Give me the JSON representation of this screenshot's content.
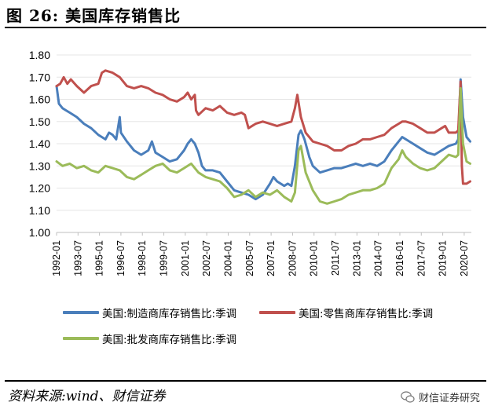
{
  "figure": {
    "title": "图 26:  美国库存销售比",
    "source": "资料来源:wind、财信证券",
    "watermark": "财信证券研究"
  },
  "chart_data": {
    "type": "line",
    "ylim": [
      1.0,
      1.8
    ],
    "yticks": [
      "1.00",
      "1.10",
      "1.20",
      "1.30",
      "1.40",
      "1.50",
      "1.60",
      "1.70",
      "1.80"
    ],
    "xlim": [
      "1992-01",
      "2020-12"
    ],
    "xticks": [
      "1992-01",
      "1993-07",
      "1995-01",
      "1996-07",
      "1998-01",
      "1999-07",
      "2001-01",
      "2002-07",
      "2004-01",
      "2005-07",
      "2007-01",
      "2008-07",
      "2010-01",
      "2011-07",
      "2013-01",
      "2014-07",
      "2016-01",
      "2017-07",
      "2019-01",
      "2020-07"
    ],
    "grid": true,
    "legend_position": "bottom",
    "series": [
      {
        "name": "美国:制造商库存销售比:季调",
        "color": "#4a7ebb",
        "points": [
          [
            "1992-01",
            1.66
          ],
          [
            "1992-03",
            1.58
          ],
          [
            "1992-06",
            1.56
          ],
          [
            "1992-09",
            1.55
          ],
          [
            "1992-12",
            1.54
          ],
          [
            "1993-06",
            1.52
          ],
          [
            "1993-12",
            1.49
          ],
          [
            "1994-06",
            1.47
          ],
          [
            "1994-12",
            1.44
          ],
          [
            "1995-06",
            1.42
          ],
          [
            "1995-09",
            1.45
          ],
          [
            "1995-12",
            1.44
          ],
          [
            "1996-03",
            1.42
          ],
          [
            "1996-06",
            1.52
          ],
          [
            "1996-07",
            1.45
          ],
          [
            "1996-12",
            1.41
          ],
          [
            "1997-06",
            1.37
          ],
          [
            "1997-12",
            1.35
          ],
          [
            "1998-06",
            1.37
          ],
          [
            "1998-09",
            1.41
          ],
          [
            "1998-12",
            1.36
          ],
          [
            "1999-06",
            1.34
          ],
          [
            "1999-12",
            1.32
          ],
          [
            "2000-06",
            1.33
          ],
          [
            "2000-12",
            1.37
          ],
          [
            "2001-03",
            1.4
          ],
          [
            "2001-06",
            1.42
          ],
          [
            "2001-09",
            1.4
          ],
          [
            "2001-12",
            1.36
          ],
          [
            "2002-03",
            1.3
          ],
          [
            "2002-06",
            1.28
          ],
          [
            "2002-12",
            1.28
          ],
          [
            "2003-06",
            1.27
          ],
          [
            "2003-12",
            1.23
          ],
          [
            "2004-06",
            1.19
          ],
          [
            "2004-12",
            1.18
          ],
          [
            "2005-06",
            1.17
          ],
          [
            "2005-12",
            1.15
          ],
          [
            "2006-06",
            1.17
          ],
          [
            "2006-12",
            1.22
          ],
          [
            "2007-03",
            1.25
          ],
          [
            "2007-06",
            1.23
          ],
          [
            "2007-12",
            1.21
          ],
          [
            "2008-03",
            1.22
          ],
          [
            "2008-06",
            1.21
          ],
          [
            "2008-09",
            1.3
          ],
          [
            "2008-12",
            1.44
          ],
          [
            "2009-02",
            1.46
          ],
          [
            "2009-05",
            1.42
          ],
          [
            "2009-09",
            1.34
          ],
          [
            "2009-12",
            1.3
          ],
          [
            "2010-06",
            1.27
          ],
          [
            "2010-12",
            1.28
          ],
          [
            "2011-06",
            1.29
          ],
          [
            "2011-12",
            1.29
          ],
          [
            "2012-06",
            1.3
          ],
          [
            "2012-12",
            1.31
          ],
          [
            "2013-06",
            1.3
          ],
          [
            "2013-12",
            1.31
          ],
          [
            "2014-06",
            1.3
          ],
          [
            "2014-12",
            1.32
          ],
          [
            "2015-06",
            1.37
          ],
          [
            "2015-12",
            1.41
          ],
          [
            "2016-03",
            1.43
          ],
          [
            "2016-06",
            1.42
          ],
          [
            "2016-12",
            1.4
          ],
          [
            "2017-06",
            1.38
          ],
          [
            "2017-12",
            1.36
          ],
          [
            "2018-06",
            1.35
          ],
          [
            "2018-12",
            1.37
          ],
          [
            "2019-06",
            1.39
          ],
          [
            "2019-12",
            1.4
          ],
          [
            "2020-02",
            1.42
          ],
          [
            "2020-04",
            1.69
          ],
          [
            "2020-06",
            1.52
          ],
          [
            "2020-09",
            1.43
          ],
          [
            "2020-12",
            1.41
          ]
        ]
      },
      {
        "name": "美国:零售商库存销售比:季调",
        "color": "#c0504d",
        "points": [
          [
            "1992-01",
            1.66
          ],
          [
            "1992-04",
            1.67
          ],
          [
            "1992-07",
            1.7
          ],
          [
            "1992-10",
            1.67
          ],
          [
            "1993-01",
            1.69
          ],
          [
            "1993-06",
            1.66
          ],
          [
            "1993-12",
            1.63
          ],
          [
            "1994-06",
            1.66
          ],
          [
            "1994-12",
            1.67
          ],
          [
            "1995-03",
            1.72
          ],
          [
            "1995-06",
            1.73
          ],
          [
            "1995-12",
            1.72
          ],
          [
            "1996-06",
            1.7
          ],
          [
            "1996-12",
            1.66
          ],
          [
            "1997-06",
            1.65
          ],
          [
            "1997-12",
            1.66
          ],
          [
            "1998-06",
            1.65
          ],
          [
            "1998-12",
            1.63
          ],
          [
            "1999-06",
            1.62
          ],
          [
            "1999-12",
            1.6
          ],
          [
            "2000-06",
            1.59
          ],
          [
            "2000-12",
            1.61
          ],
          [
            "2001-03",
            1.63
          ],
          [
            "2001-06",
            1.6
          ],
          [
            "2001-09",
            1.62
          ],
          [
            "2001-10",
            1.55
          ],
          [
            "2001-12",
            1.53
          ],
          [
            "2002-06",
            1.56
          ],
          [
            "2002-12",
            1.55
          ],
          [
            "2003-06",
            1.57
          ],
          [
            "2003-12",
            1.54
          ],
          [
            "2004-06",
            1.53
          ],
          [
            "2004-12",
            1.54
          ],
          [
            "2005-03",
            1.53
          ],
          [
            "2005-06",
            1.47
          ],
          [
            "2005-12",
            1.49
          ],
          [
            "2006-06",
            1.5
          ],
          [
            "2006-12",
            1.49
          ],
          [
            "2007-06",
            1.48
          ],
          [
            "2007-12",
            1.49
          ],
          [
            "2008-06",
            1.5
          ],
          [
            "2008-09",
            1.56
          ],
          [
            "2008-11",
            1.62
          ],
          [
            "2009-02",
            1.52
          ],
          [
            "2009-06",
            1.45
          ],
          [
            "2009-12",
            1.41
          ],
          [
            "2010-06",
            1.4
          ],
          [
            "2010-12",
            1.39
          ],
          [
            "2011-06",
            1.37
          ],
          [
            "2011-12",
            1.37
          ],
          [
            "2012-06",
            1.39
          ],
          [
            "2012-12",
            1.4
          ],
          [
            "2013-06",
            1.42
          ],
          [
            "2013-12",
            1.42
          ],
          [
            "2014-06",
            1.43
          ],
          [
            "2014-12",
            1.44
          ],
          [
            "2015-06",
            1.47
          ],
          [
            "2015-12",
            1.49
          ],
          [
            "2016-03",
            1.5
          ],
          [
            "2016-06",
            1.5
          ],
          [
            "2016-12",
            1.49
          ],
          [
            "2017-06",
            1.47
          ],
          [
            "2017-12",
            1.45
          ],
          [
            "2018-06",
            1.45
          ],
          [
            "2018-12",
            1.47
          ],
          [
            "2019-03",
            1.48
          ],
          [
            "2019-06",
            1.45
          ],
          [
            "2019-12",
            1.45
          ],
          [
            "2020-02",
            1.46
          ],
          [
            "2020-04",
            1.68
          ],
          [
            "2020-05",
            1.3
          ],
          [
            "2020-06",
            1.22
          ],
          [
            "2020-09",
            1.22
          ],
          [
            "2020-12",
            1.23
          ]
        ]
      },
      {
        "name": "美国:批发商库存销售比:季调",
        "color": "#9bbb59",
        "points": [
          [
            "1992-01",
            1.32
          ],
          [
            "1992-06",
            1.3
          ],
          [
            "1992-12",
            1.31
          ],
          [
            "1993-06",
            1.29
          ],
          [
            "1993-12",
            1.3
          ],
          [
            "1994-06",
            1.28
          ],
          [
            "1994-12",
            1.27
          ],
          [
            "1995-06",
            1.3
          ],
          [
            "1995-12",
            1.29
          ],
          [
            "1996-06",
            1.28
          ],
          [
            "1996-12",
            1.25
          ],
          [
            "1997-06",
            1.24
          ],
          [
            "1997-12",
            1.26
          ],
          [
            "1998-06",
            1.28
          ],
          [
            "1998-12",
            1.3
          ],
          [
            "1999-06",
            1.31
          ],
          [
            "1999-12",
            1.28
          ],
          [
            "2000-06",
            1.27
          ],
          [
            "2000-12",
            1.29
          ],
          [
            "2001-06",
            1.31
          ],
          [
            "2001-12",
            1.27
          ],
          [
            "2002-06",
            1.25
          ],
          [
            "2002-12",
            1.24
          ],
          [
            "2003-06",
            1.23
          ],
          [
            "2003-12",
            1.2
          ],
          [
            "2004-06",
            1.16
          ],
          [
            "2004-12",
            1.17
          ],
          [
            "2005-06",
            1.19
          ],
          [
            "2005-12",
            1.16
          ],
          [
            "2006-06",
            1.18
          ],
          [
            "2006-12",
            1.17
          ],
          [
            "2007-06",
            1.19
          ],
          [
            "2007-12",
            1.16
          ],
          [
            "2008-06",
            1.14
          ],
          [
            "2008-09",
            1.18
          ],
          [
            "2008-12",
            1.37
          ],
          [
            "2009-02",
            1.39
          ],
          [
            "2009-06",
            1.27
          ],
          [
            "2009-12",
            1.19
          ],
          [
            "2010-06",
            1.14
          ],
          [
            "2010-12",
            1.13
          ],
          [
            "2011-06",
            1.14
          ],
          [
            "2011-12",
            1.15
          ],
          [
            "2012-06",
            1.17
          ],
          [
            "2012-12",
            1.18
          ],
          [
            "2013-06",
            1.19
          ],
          [
            "2013-12",
            1.19
          ],
          [
            "2014-06",
            1.2
          ],
          [
            "2014-12",
            1.22
          ],
          [
            "2015-06",
            1.29
          ],
          [
            "2015-12",
            1.33
          ],
          [
            "2016-03",
            1.37
          ],
          [
            "2016-06",
            1.34
          ],
          [
            "2016-12",
            1.31
          ],
          [
            "2017-06",
            1.29
          ],
          [
            "2017-12",
            1.28
          ],
          [
            "2018-06",
            1.29
          ],
          [
            "2018-12",
            1.32
          ],
          [
            "2019-06",
            1.35
          ],
          [
            "2019-12",
            1.34
          ],
          [
            "2020-02",
            1.35
          ],
          [
            "2020-04",
            1.65
          ],
          [
            "2020-06",
            1.4
          ],
          [
            "2020-09",
            1.32
          ],
          [
            "2020-12",
            1.31
          ]
        ]
      }
    ]
  }
}
